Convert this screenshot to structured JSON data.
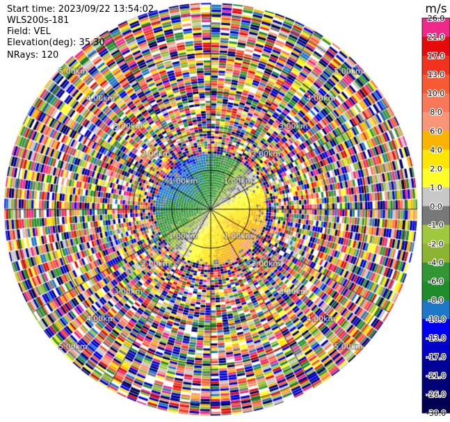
{
  "header": {
    "start_time": "Start time: 2023/09/22 13:54:02",
    "instrument": "WLS200s-181",
    "field": "Field: VEL",
    "elevation": "Elevation(deg): 35.30",
    "nrays": "NRays: 120"
  },
  "colorbar": {
    "unit": "m/s",
    "levels": [
      {
        "label": "26.0",
        "color": "#f0288c"
      },
      {
        "label": "21.0",
        "color": "#e60a0a"
      },
      {
        "label": "17.0",
        "color": "#f0321e"
      },
      {
        "label": "13.0",
        "color": "#f75a32"
      },
      {
        "label": "10.0",
        "color": "#fa785a"
      },
      {
        "label": "8.0",
        "color": "#fa9678"
      },
      {
        "label": "6.0",
        "color": "#fab400"
      },
      {
        "label": "4.0",
        "color": "#ffe600"
      },
      {
        "label": "2.0",
        "color": "#ffff28"
      },
      {
        "label": "1.0",
        "color": "#c8c8c8"
      },
      {
        "label": "0.0",
        "color": "#787878"
      },
      {
        "label": "-1.0",
        "color": "#a0c83c"
      },
      {
        "label": "-2.0",
        "color": "#8cb432"
      },
      {
        "label": "-4.0",
        "color": "#329632"
      },
      {
        "label": "-6.0",
        "color": "#1e8c28"
      },
      {
        "label": "-8.0",
        "color": "#1e78c8"
      },
      {
        "label": "-10.0",
        "color": "#0000f0"
      },
      {
        "label": "-13.0",
        "color": "#0000c8"
      },
      {
        "label": "-17.0",
        "color": "#000096"
      },
      {
        "label": "-21.0",
        "color": "#000078"
      },
      {
        "label": "-26.0",
        "color": "#000050"
      },
      {
        "label": "-30.0",
        "color": "#000050"
      }
    ]
  },
  "chart_data": {
    "type": "heatmap",
    "projection": "PPI (polar, range rings and azimuth spokes)",
    "field": "VEL",
    "units": "m/s",
    "range_rings_km": [
      1.0,
      2.0,
      3.0,
      4.0,
      5.0
    ],
    "ring_labels": [
      "1.00km",
      "2.00km",
      "3.00km",
      "4.00km",
      "5.00km"
    ],
    "max_range_km": 5.3,
    "n_rays": 120,
    "spoke_step_deg": 30,
    "valid_data_range_km": 1.3,
    "inner_pattern": "negative velocities (greens) toward upper-left, positive velocities (yellow/orange) toward lower-right, near-zero gray along the diagonal",
    "outer_pattern": "noise (random colours) beyond ~1.6 km"
  }
}
